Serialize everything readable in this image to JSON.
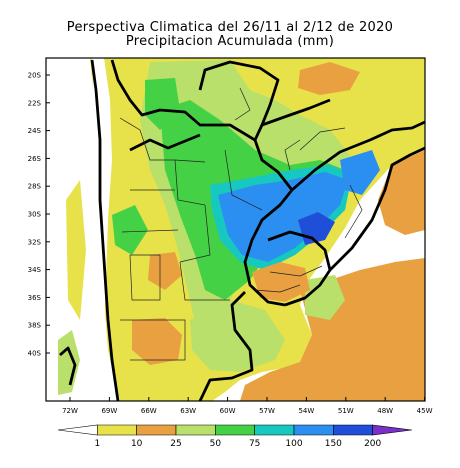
{
  "title": {
    "line1": "Perspectiva Climatica del 26/11 al 2/12 de 2020",
    "line2": "Precipitacion Acumulada (mm)"
  },
  "map": {
    "lat_labels": [
      "20S",
      "22S",
      "24S",
      "26S",
      "28S",
      "30S",
      "32S",
      "34S",
      "36S",
      "38S",
      "40S"
    ],
    "lon_labels": [
      "72W",
      "69W",
      "66W",
      "63W",
      "60W",
      "57W",
      "54W",
      "51W",
      "48W",
      "45W"
    ]
  },
  "colorbar": {
    "labels": [
      "1",
      "10",
      "25",
      "50",
      "75",
      "100",
      "150",
      "200"
    ],
    "colors": [
      "#ffffff",
      "#e8e24a",
      "#e8a040",
      "#b9e06a",
      "#45d145",
      "#17c8c0",
      "#2a8ff0",
      "#1f4fd8",
      "#7a2fc8"
    ]
  },
  "colors": {
    "ocean": "#ffffff",
    "frame": "#000000"
  }
}
